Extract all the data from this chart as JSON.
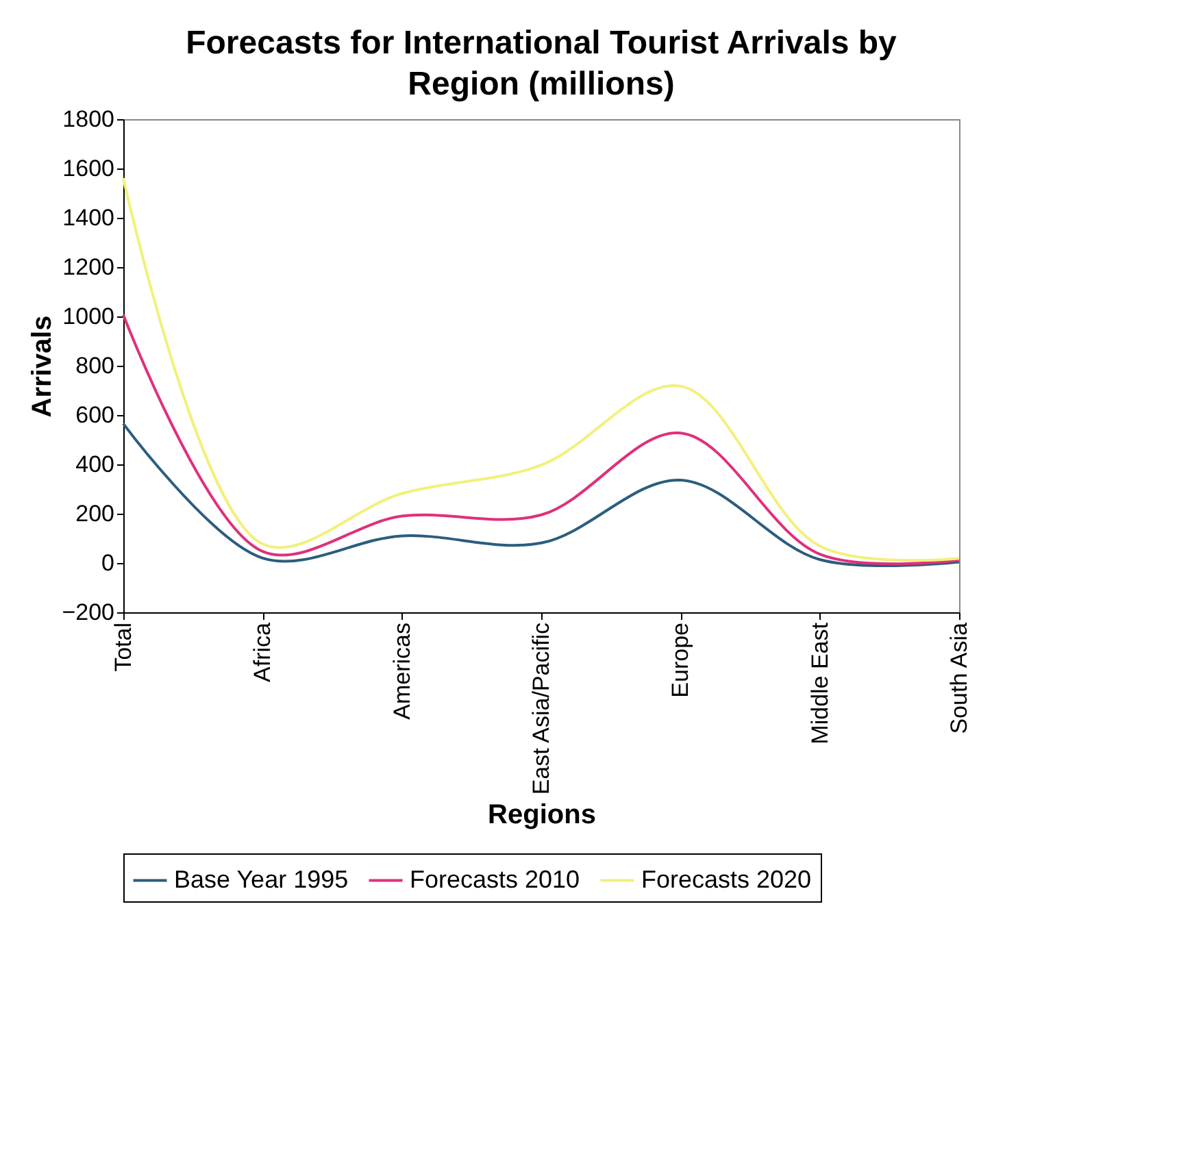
{
  "chart_data": {
    "type": "line",
    "title": "Forecasts for International Tourist Arrivals by Region (millions)",
    "xlabel": "Regions",
    "ylabel": "Arrivals",
    "categories": [
      "Total",
      "Africa",
      "Americas",
      "East Asia/Pacific",
      "Europe",
      "Middle East",
      "South Asia"
    ],
    "series": [
      {
        "name": "Base Year 1995",
        "color": "#2b5d7e",
        "values": [
          565,
          20,
          110,
          81,
          336,
          14,
          4
        ]
      },
      {
        "name": "Forecasts 2010",
        "color": "#e0307a",
        "values": [
          1006,
          47,
          190,
          195,
          527,
          36,
          11
        ]
      },
      {
        "name": "Forecasts 2020",
        "color": "#f2f07a",
        "values": [
          1561,
          77,
          282,
          397,
          717,
          69,
          19
        ]
      }
    ],
    "ylim": [
      -200,
      1800
    ],
    "yticks": [
      -200,
      0,
      200,
      400,
      600,
      800,
      1000,
      1200,
      1400,
      1600,
      1800
    ],
    "grid": false,
    "legend": "bottom",
    "marker": "none",
    "line_style": "solid"
  }
}
